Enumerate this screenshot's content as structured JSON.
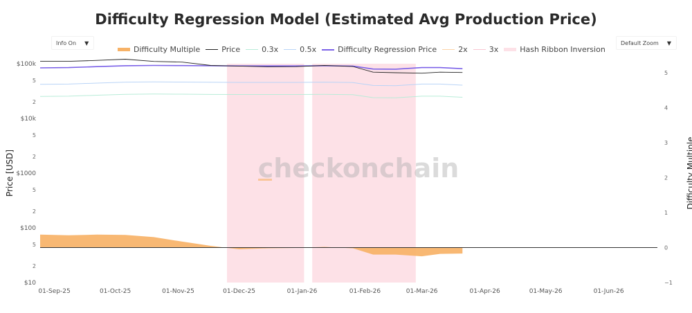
{
  "header": {
    "title": "Difficulty Regression Model (Estimated Avg Production Price)"
  },
  "controls": {
    "info_dropdown": {
      "label": "Info On",
      "icon": "triangle-down-icon"
    },
    "zoom_dropdown": {
      "label": "Default Zoom",
      "icon": "triangle-down-icon"
    }
  },
  "watermark": "checkonchain",
  "colors": {
    "difficulty_multiple": "#f7b267",
    "price": "#222222",
    "x03": "#b8ecd8",
    "x05": "#b9d4f7",
    "regression": "#7b61e8",
    "x2": "#fbd3a8",
    "x3": "#f8c6d2",
    "ribbon": "#fde1e7",
    "zero_line": "#333333"
  },
  "chart_data": {
    "type": "line",
    "title": "Difficulty Regression Model (Estimated Avg Production Price)",
    "xlabel": "",
    "ylabel": "Price [USD]",
    "y2label": "Difficulty Multiple",
    "yscale": "log",
    "ylim": [
      10,
      150000
    ],
    "y2lim": [
      -1,
      5.5
    ],
    "xlim": [
      "2025-08-25",
      "2026-06-25"
    ],
    "grid": false,
    "legend_position": "top-center",
    "x_ticks": [
      "01-Sep-25",
      "01-Oct-25",
      "01-Nov-25",
      "01-Dec-25",
      "01-Jan-26",
      "01-Feb-26",
      "01-Mar-26",
      "01-Apr-26",
      "01-May-26",
      "01-Jun-26"
    ],
    "x_tick_dates": [
      "2025-09-01",
      "2025-10-01",
      "2025-11-01",
      "2025-12-01",
      "2026-01-01",
      "2026-02-01",
      "2026-03-01",
      "2026-04-01",
      "2026-05-01",
      "2026-06-01"
    ],
    "y_ticks": [
      {
        "value": 100000,
        "label": "$100k"
      },
      {
        "value": 50000,
        "label": "5"
      },
      {
        "value": 20000,
        "label": "2"
      },
      {
        "value": 10000,
        "label": "$10k"
      },
      {
        "value": 5000,
        "label": "5"
      },
      {
        "value": 2000,
        "label": "2"
      },
      {
        "value": 1000,
        "label": "$1000"
      },
      {
        "value": 500,
        "label": "5"
      },
      {
        "value": 200,
        "label": "2"
      },
      {
        "value": 100,
        "label": "$100"
      },
      {
        "value": 50,
        "label": "5"
      },
      {
        "value": 20,
        "label": "2"
      },
      {
        "value": 10,
        "label": "$10"
      }
    ],
    "y2_ticks": [
      5,
      4,
      3,
      2,
      1,
      0,
      -1
    ],
    "legend": [
      "Difficulty Multiple",
      "Price",
      "0.3x",
      "0.5x",
      "Difficulty Regression Price",
      "2x",
      "3x",
      "Hash Ribbon Inversion"
    ],
    "x": [
      "2025-08-25",
      "2025-09-08",
      "2025-09-22",
      "2025-10-06",
      "2025-10-20",
      "2025-11-03",
      "2025-11-17",
      "2025-12-01",
      "2025-12-15",
      "2025-12-29",
      "2026-01-12",
      "2026-01-26",
      "2026-02-05",
      "2026-02-16",
      "2026-03-01",
      "2026-03-10",
      "2026-03-21"
    ],
    "series": [
      {
        "name": "Price",
        "axis": "left",
        "values": [
          111000,
          110500,
          115000,
          121000,
          110000,
          107000,
          93000,
          90500,
          88000,
          88500,
          93000,
          89000,
          70000,
          68500,
          67000,
          70000,
          69000
        ]
      },
      {
        "name": "Difficulty Regression Price",
        "axis": "left",
        "values": [
          84000,
          85000,
          88500,
          92000,
          93000,
          92500,
          91500,
          91000,
          91000,
          91000,
          92000,
          90500,
          80000,
          79500,
          85000,
          85000,
          81000
        ]
      },
      {
        "name": "0.5x",
        "axis": "left",
        "values": [
          42000,
          42500,
          44250,
          46000,
          46500,
          46250,
          45750,
          45500,
          45500,
          45500,
          46000,
          45250,
          40000,
          39750,
          42500,
          42500,
          40500
        ]
      },
      {
        "name": "0.3x",
        "axis": "left",
        "values": [
          25200,
          25500,
          26550,
          27600,
          27900,
          27750,
          27450,
          27300,
          27300,
          27300,
          27600,
          27150,
          24000,
          23850,
          25500,
          25500,
          24300
        ]
      },
      {
        "name": "Difficulty Multiple",
        "axis": "right",
        "type": "area",
        "values": [
          0.37,
          0.35,
          0.37,
          0.36,
          0.3,
          0.17,
          0.05,
          -0.05,
          -0.02,
          -0.01,
          0.02,
          -0.02,
          -0.2,
          -0.2,
          -0.25,
          -0.18,
          -0.17
        ]
      }
    ],
    "bands": [
      {
        "name": "Hash Ribbon Inversion",
        "start": "2025-11-25",
        "end": "2026-01-02"
      },
      {
        "name": "Hash Ribbon Inversion",
        "start": "2026-01-06",
        "end": "2026-02-26"
      }
    ]
  }
}
